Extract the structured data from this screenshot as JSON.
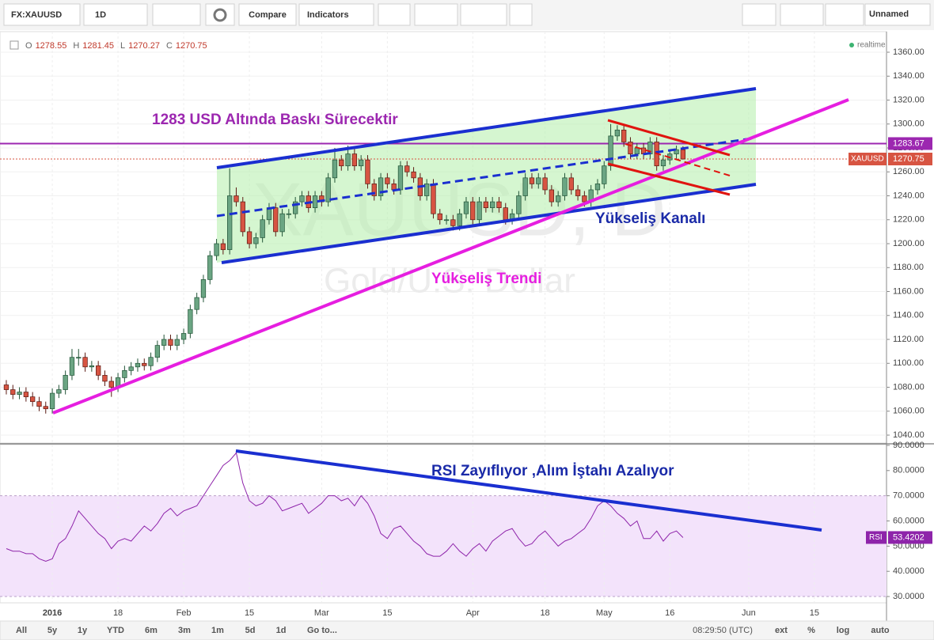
{
  "toolbar": {
    "symbol": "FX:XAUUSD",
    "interval": "1D",
    "compare": "Compare",
    "indicators": "Indicators",
    "layout_name": "Unnamed"
  },
  "ohlc": [
    {
      "label": "O",
      "value": 1278.55
    },
    {
      "label": "H",
      "value": 1281.45
    },
    {
      "label": "L",
      "value": 1270.27
    },
    {
      "label": "C",
      "value": 1270.75
    }
  ],
  "status": "realtime",
  "annotations": [
    "1283 USD Altında Baskı Sürecektir",
    "Yükseliş Kanalı",
    "Yükseliş Trendi",
    "RSI Zayıflıyor ,Alım İştahı Azalıyor"
  ],
  "watermark": {
    "symbol": "XAUUSD, D",
    "description": "Gold/U.S. Dollar"
  },
  "bottom_bar": {
    "ranges": [
      "All",
      "5y",
      "1y",
      "YTD",
      "6m",
      "3m",
      "1m",
      "5d",
      "1d"
    ],
    "goto": "Go to...",
    "time": "08:29:50 (UTC)",
    "options": [
      "ext",
      "%",
      "log",
      "auto"
    ]
  },
  "chart_data": [
    {
      "type": "candlestick",
      "color_up": "#6ba583",
      "color_down": "#d75442",
      "xlim": [
        -0.96,
        133.98
      ],
      "ylim": [
        1033.4,
        1377.2
      ],
      "yticks": [
        {
          "value": 1040,
          "label": "1040.00"
        },
        {
          "value": 1060,
          "label": "1060.00"
        },
        {
          "value": 1080,
          "label": "1080.00"
        },
        {
          "value": 1100,
          "label": "1100.00"
        },
        {
          "value": 1120,
          "label": "1120.00"
        },
        {
          "value": 1140,
          "label": "1140.00"
        },
        {
          "value": 1160,
          "label": "1160.00"
        },
        {
          "value": 1180,
          "label": "1180.00"
        },
        {
          "value": 1200,
          "label": "1200.00"
        },
        {
          "value": 1220,
          "label": "1220.00"
        },
        {
          "value": 1240,
          "label": "1240.00"
        },
        {
          "value": 1260,
          "label": "1260.00"
        },
        {
          "value": 1280,
          "label": "1280.00"
        },
        {
          "value": 1300,
          "label": "1300.00"
        },
        {
          "value": 1320,
          "label": "1320.00"
        },
        {
          "value": 1340,
          "label": "1340.00"
        },
        {
          "value": 1360,
          "label": "1360.00"
        }
      ],
      "xticks": [
        {
          "value": 7,
          "label": "2016"
        },
        {
          "value": 17,
          "label": "18"
        },
        {
          "value": 27,
          "label": "Feb"
        },
        {
          "value": 37,
          "label": "15"
        },
        {
          "value": 48,
          "label": "Mar"
        },
        {
          "value": 58,
          "label": "15"
        },
        {
          "value": 71,
          "label": "Apr"
        },
        {
          "value": 82,
          "label": "18"
        },
        {
          "value": 91,
          "label": "May"
        },
        {
          "value": 101,
          "label": "16"
        },
        {
          "value": 113,
          "label": "Jun"
        },
        {
          "value": 123,
          "label": "15"
        }
      ],
      "hline": {
        "value": 1283.67,
        "color": "#9c27b0"
      },
      "last_price": {
        "name": "XAUUSD",
        "value": 1270.75,
        "color": "#d75442"
      },
      "candles": [
        [
          1082,
          1086,
          1074,
          1078
        ],
        [
          1078,
          1082,
          1070,
          1074
        ],
        [
          1074,
          1080,
          1070,
          1076
        ],
        [
          1076,
          1080,
          1068,
          1072
        ],
        [
          1072,
          1076,
          1064,
          1068
        ],
        [
          1068,
          1072,
          1060,
          1064
        ],
        [
          1064,
          1068,
          1058,
          1062
        ],
        [
          1062,
          1079,
          1058,
          1075
        ],
        [
          1075,
          1082,
          1071,
          1078
        ],
        [
          1078,
          1094,
          1074,
          1090
        ],
        [
          1090,
          1112,
          1086,
          1105
        ],
        [
          1105,
          1112,
          1098,
          1105
        ],
        [
          1105,
          1109,
          1093,
          1097
        ],
        [
          1097,
          1102,
          1093,
          1098
        ],
        [
          1098,
          1102,
          1086,
          1090
        ],
        [
          1090,
          1094,
          1081,
          1085
        ],
        [
          1085,
          1089,
          1072,
          1080
        ],
        [
          1080,
          1092,
          1076,
          1088
        ],
        [
          1088,
          1098,
          1084,
          1094
        ],
        [
          1094,
          1101,
          1090,
          1097
        ],
        [
          1097,
          1104,
          1093,
          1100
        ],
        [
          1100,
          1104,
          1094,
          1098
        ],
        [
          1098,
          1109,
          1094,
          1105
        ],
        [
          1105,
          1119,
          1101,
          1115
        ],
        [
          1115,
          1124,
          1111,
          1120
        ],
        [
          1120,
          1124,
          1111,
          1115
        ],
        [
          1115,
          1124,
          1111,
          1120
        ],
        [
          1120,
          1129,
          1116,
          1125
        ],
        [
          1125,
          1149,
          1121,
          1145
        ],
        [
          1145,
          1159,
          1141,
          1155
        ],
        [
          1155,
          1174,
          1151,
          1170
        ],
        [
          1170,
          1194,
          1166,
          1190
        ],
        [
          1190,
          1204,
          1186,
          1200
        ],
        [
          1200,
          1204,
          1191,
          1195
        ],
        [
          1195,
          1263,
          1191,
          1240
        ],
        [
          1240,
          1247,
          1231,
          1235
        ],
        [
          1235,
          1239,
          1206,
          1210
        ],
        [
          1210,
          1214,
          1196,
          1200
        ],
        [
          1200,
          1209,
          1196,
          1205
        ],
        [
          1205,
          1224,
          1201,
          1220
        ],
        [
          1220,
          1234,
          1216,
          1230
        ],
        [
          1230,
          1234,
          1206,
          1210
        ],
        [
          1210,
          1229,
          1206,
          1225
        ],
        [
          1225,
          1229,
          1221,
          1225
        ],
        [
          1225,
          1239,
          1221,
          1235
        ],
        [
          1235,
          1244,
          1231,
          1240
        ],
        [
          1240,
          1244,
          1226,
          1230
        ],
        [
          1230,
          1244,
          1226,
          1240
        ],
        [
          1240,
          1244,
          1231,
          1235
        ],
        [
          1235,
          1259,
          1231,
          1255
        ],
        [
          1255,
          1280,
          1251,
          1270
        ],
        [
          1270,
          1274,
          1261,
          1265
        ],
        [
          1265,
          1282,
          1261,
          1275
        ],
        [
          1275,
          1279,
          1261,
          1265
        ],
        [
          1265,
          1274,
          1261,
          1270
        ],
        [
          1270,
          1274,
          1246,
          1250
        ],
        [
          1250,
          1254,
          1236,
          1240
        ],
        [
          1240,
          1259,
          1236,
          1255
        ],
        [
          1255,
          1259,
          1246,
          1250
        ],
        [
          1250,
          1254,
          1241,
          1245
        ],
        [
          1245,
          1269,
          1241,
          1265
        ],
        [
          1265,
          1269,
          1256,
          1260
        ],
        [
          1260,
          1264,
          1251,
          1255
        ],
        [
          1255,
          1259,
          1236,
          1240
        ],
        [
          1240,
          1254,
          1236,
          1250
        ],
        [
          1250,
          1254,
          1221,
          1225
        ],
        [
          1225,
          1229,
          1216,
          1220
        ],
        [
          1220,
          1224,
          1216,
          1220
        ],
        [
          1220,
          1224,
          1211,
          1215
        ],
        [
          1215,
          1229,
          1211,
          1225
        ],
        [
          1225,
          1239,
          1221,
          1235
        ],
        [
          1235,
          1239,
          1216,
          1220
        ],
        [
          1220,
          1239,
          1216,
          1235
        ],
        [
          1235,
          1239,
          1226,
          1230
        ],
        [
          1230,
          1239,
          1226,
          1235
        ],
        [
          1235,
          1239,
          1226,
          1230
        ],
        [
          1230,
          1234,
          1216,
          1220
        ],
        [
          1220,
          1229,
          1216,
          1225
        ],
        [
          1225,
          1244,
          1221,
          1240
        ],
        [
          1240,
          1259,
          1236,
          1255
        ],
        [
          1255,
          1259,
          1246,
          1250
        ],
        [
          1250,
          1259,
          1246,
          1255
        ],
        [
          1255,
          1259,
          1241,
          1245
        ],
        [
          1245,
          1249,
          1231,
          1235
        ],
        [
          1235,
          1244,
          1231,
          1240
        ],
        [
          1240,
          1259,
          1236,
          1255
        ],
        [
          1255,
          1259,
          1241,
          1245
        ],
        [
          1245,
          1249,
          1236,
          1240
        ],
        [
          1240,
          1244,
          1231,
          1235
        ],
        [
          1235,
          1249,
          1231,
          1245
        ],
        [
          1245,
          1254,
          1241,
          1250
        ],
        [
          1250,
          1269,
          1246,
          1265
        ],
        [
          1265,
          1300,
          1261,
          1290
        ],
        [
          1290,
          1299,
          1286,
          1295
        ],
        [
          1295,
          1299,
          1281,
          1285
        ],
        [
          1285,
          1289,
          1271,
          1275
        ],
        [
          1275,
          1284,
          1271,
          1280
        ],
        [
          1280,
          1284,
          1271,
          1275
        ],
        [
          1275,
          1289,
          1271,
          1285
        ],
        [
          1285,
          1289,
          1261,
          1265
        ],
        [
          1265,
          1274,
          1261,
          1270
        ],
        [
          1270,
          1279,
          1266,
          1275
        ],
        [
          1275,
          1282,
          1271,
          1278.55
        ],
        [
          1278.55,
          1281.45,
          1270.27,
          1270.75
        ]
      ]
    },
    {
      "type": "line",
      "name": "RSI",
      "color": "#8e24aa",
      "ylim": [
        27.5,
        90.3
      ],
      "band": [
        30,
        70
      ],
      "yticks": [
        {
          "value": 30,
          "label": "30.0000"
        },
        {
          "value": 40,
          "label": "40.0000"
        },
        {
          "value": 50,
          "label": "50.0000"
        },
        {
          "value": 60,
          "label": "60.0000"
        },
        {
          "value": 70,
          "label": "70.0000"
        },
        {
          "value": 80,
          "label": "80.0000"
        },
        {
          "value": 90,
          "label": "90.0000"
        }
      ],
      "values": [
        49,
        48,
        48,
        47,
        47,
        45,
        44,
        45,
        51,
        53,
        58,
        64,
        61,
        58,
        55,
        53,
        49,
        52,
        53,
        52,
        55,
        58,
        56,
        59,
        63,
        65,
        62,
        64,
        65,
        66,
        70,
        74,
        78,
        82,
        84,
        87,
        75,
        68,
        66,
        67,
        70,
        68,
        64,
        65,
        66,
        67,
        63,
        65,
        67,
        70,
        70,
        68,
        69,
        66,
        70,
        67,
        62,
        55,
        53,
        57,
        58,
        55,
        52,
        50,
        47,
        46,
        46,
        48,
        51,
        48,
        46,
        49,
        51,
        48,
        52,
        54,
        56,
        57,
        53,
        50,
        51,
        54,
        56,
        53,
        50,
        52,
        53,
        55,
        57,
        61,
        66,
        68,
        66,
        63,
        61,
        58,
        60,
        53,
        53,
        56,
        52,
        55,
        56,
        53.4202
      ]
    }
  ]
}
